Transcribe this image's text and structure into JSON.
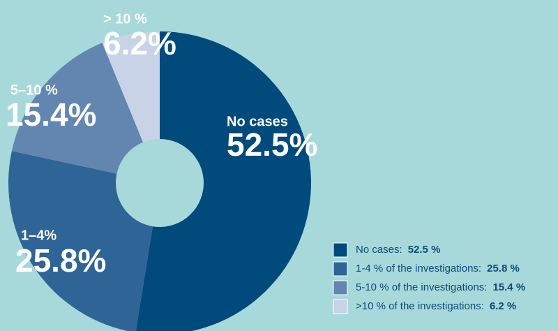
{
  "chart_data": {
    "type": "donut",
    "categories": [
      "No cases",
      "1–4%",
      "5–10 %",
      "> 10 %"
    ],
    "values": [
      52.5,
      25.8,
      15.4,
      6.2
    ],
    "value_labels": [
      "52.5%",
      "25.8%",
      "15.4%",
      "6.2%"
    ],
    "colors": [
      "#004a7c",
      "#2e6496",
      "#6286b0",
      "#c9d3e7"
    ],
    "legend": {
      "labels": [
        "No cases:",
        "1-4 % of the investigations:",
        "5-10 % of the investigations:",
        ">10 % of the investigations:"
      ],
      "values": [
        "52.5 %",
        "25.8 %",
        "15.4 %",
        "6.2 %"
      ]
    }
  }
}
